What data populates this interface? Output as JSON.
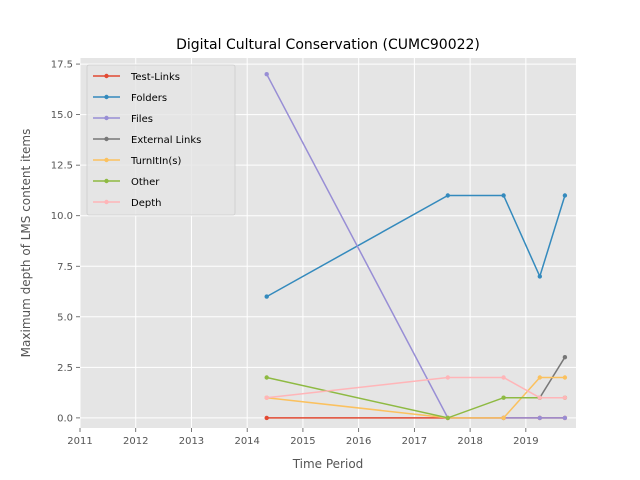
{
  "chart_data": {
    "type": "line",
    "title": "Digital Cultural Conservation (CUMC90022)",
    "xlabel": "Time Period",
    "ylabel": "Maximum depth of LMS content items",
    "xlim": [
      2011,
      2019.9
    ],
    "ylim": [
      -0.5,
      17.8
    ],
    "xticks": [
      2011,
      2012,
      2013,
      2014,
      2015,
      2016,
      2017,
      2018,
      2019
    ],
    "yticks": [
      "0.0",
      "2.5",
      "5.0",
      "7.5",
      "10.0",
      "12.5",
      "15.0",
      "17.5"
    ],
    "grid": true,
    "legend_position": "upper-left",
    "series": [
      {
        "name": "Test-Links",
        "color": "#E24A33",
        "x": [
          2014.35,
          2017.6,
          2018.6,
          2019.25,
          2019.7
        ],
        "y": [
          0,
          0,
          0,
          0,
          0
        ]
      },
      {
        "name": "Folders",
        "color": "#348ABD",
        "x": [
          2014.35,
          2017.6,
          2018.6,
          2019.25,
          2019.7
        ],
        "y": [
          6,
          11,
          11,
          7,
          11
        ]
      },
      {
        "name": "Files",
        "color": "#988ED5",
        "x": [
          2014.35,
          2017.6,
          2018.6,
          2019.25,
          2019.7
        ],
        "y": [
          17,
          0,
          0,
          0,
          0
        ]
      },
      {
        "name": "External Links",
        "color": "#777777",
        "x": [
          2019.25,
          2019.7
        ],
        "y": [
          1,
          3
        ]
      },
      {
        "name": "TurnItIn(s)",
        "color": "#FBC15E",
        "x": [
          2014.35,
          2017.6,
          2018.6,
          2019.25,
          2019.7
        ],
        "y": [
          1,
          0,
          0,
          2,
          2
        ]
      },
      {
        "name": "Other",
        "color": "#8EBA42",
        "x": [
          2014.35,
          2017.6,
          2018.6,
          2019.25,
          2019.7
        ],
        "y": [
          2,
          0,
          1,
          1,
          1
        ]
      },
      {
        "name": "Depth",
        "color": "#FFB5B8",
        "x": [
          2014.35,
          2017.6,
          2018.6,
          2019.25,
          2019.7
        ],
        "y": [
          1,
          2,
          2,
          1,
          1
        ]
      }
    ]
  }
}
